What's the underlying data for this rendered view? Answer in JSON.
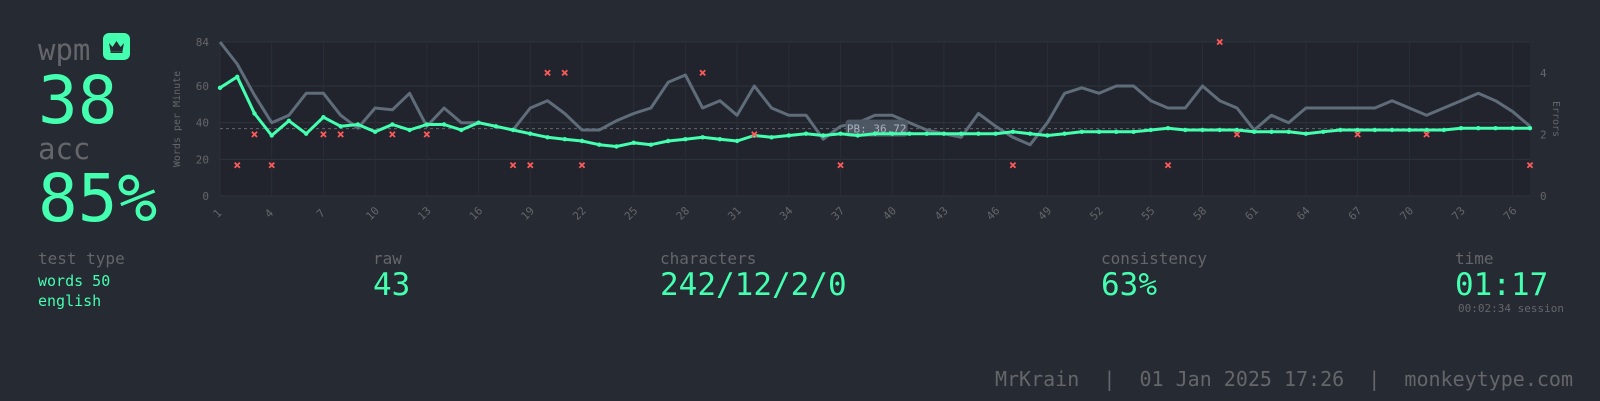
{
  "summary": {
    "wpm_label": "wpm",
    "wpm_value": "38",
    "acc_label": "acc",
    "acc_value": "85%"
  },
  "stats": {
    "test_type_label": "test type",
    "test_type_mode": "words 50",
    "test_type_language": "english",
    "raw_label": "raw",
    "raw_value": "43",
    "characters_label": "characters",
    "characters_value": "242/12/2/0",
    "consistency_label": "consistency",
    "consistency_value": "63%",
    "time_label": "time",
    "time_value": "01:17",
    "session_time": "00:02:34 session"
  },
  "footer": {
    "username": "MrKrain",
    "datetime": "01 Jan 2025 17:26",
    "site": "monkeytype.com",
    "separator": "|"
  },
  "icons": {
    "badge": "crown-icon"
  },
  "colors": {
    "accent": "#43ffaf",
    "sub": "#646669",
    "bg": "#262a33",
    "error": "#ff5a5a",
    "raw": "#5f6c7a"
  },
  "chart_data": {
    "type": "line",
    "ylabel": "Words per Minute",
    "y2label": "Errors",
    "ylim": [
      0,
      84
    ],
    "y2lim": [
      0,
      5
    ],
    "yticks": [
      "0",
      "20",
      "40",
      "60",
      "84"
    ],
    "y2ticks": [
      "0",
      "2",
      "4"
    ],
    "xlim": [
      1,
      77
    ],
    "xticks": [
      "1",
      "4",
      "7",
      "10",
      "13",
      "16",
      "19",
      "22",
      "25",
      "28",
      "31",
      "34",
      "37",
      "40",
      "43",
      "46",
      "49",
      "52",
      "55",
      "58",
      "61",
      "64",
      "67",
      "70",
      "73",
      "76"
    ],
    "pb_label": "PB: 36.72",
    "pb_value": 36.72,
    "x": [
      1,
      2,
      3,
      4,
      5,
      6,
      7,
      8,
      9,
      10,
      11,
      12,
      13,
      14,
      15,
      16,
      17,
      18,
      19,
      20,
      21,
      22,
      23,
      24,
      25,
      26,
      27,
      28,
      29,
      30,
      31,
      32,
      33,
      34,
      35,
      36,
      37,
      38,
      39,
      40,
      41,
      42,
      43,
      44,
      45,
      46,
      47,
      48,
      49,
      50,
      51,
      52,
      53,
      54,
      55,
      56,
      57,
      58,
      59,
      60,
      61,
      62,
      63,
      64,
      65,
      66,
      67,
      68,
      69,
      70,
      71,
      72,
      73,
      74,
      75,
      76,
      77
    ],
    "series": [
      {
        "name": "wpm",
        "values": [
          59,
          65,
          45,
          33,
          41,
          34,
          43,
          38,
          39,
          35,
          39,
          36,
          39,
          39,
          36,
          40,
          38,
          36,
          34,
          32,
          31,
          30,
          28,
          27,
          29,
          28,
          30,
          31,
          32,
          31,
          30,
          33,
          32,
          33,
          34,
          33,
          34,
          33,
          34,
          34,
          34,
          34,
          34,
          34,
          34,
          34,
          35,
          34,
          33,
          34,
          35,
          35,
          35,
          35,
          36,
          37,
          36,
          36,
          36,
          36,
          35,
          35,
          35,
          34,
          35,
          36,
          36,
          36,
          36,
          36,
          36,
          36,
          37,
          37,
          37,
          37,
          37
        ]
      },
      {
        "name": "raw",
        "values": [
          84,
          72,
          55,
          40,
          44,
          56,
          56,
          44,
          37,
          48,
          47,
          56,
          38,
          48,
          40,
          40,
          38,
          36,
          48,
          52,
          45,
          36,
          36,
          41,
          45,
          48,
          62,
          66,
          48,
          52,
          44,
          60,
          48,
          44,
          44,
          31,
          38,
          40,
          44,
          44,
          40,
          36,
          34,
          32,
          45,
          38,
          32,
          28,
          40,
          56,
          59,
          56,
          60,
          60,
          52,
          48,
          48,
          60,
          52,
          48,
          36,
          44,
          40,
          48,
          48,
          48,
          48,
          48,
          52,
          48,
          44,
          48,
          52,
          56,
          52,
          46,
          38
        ]
      },
      {
        "name": "errors",
        "points": [
          [
            2,
            1
          ],
          [
            3,
            2
          ],
          [
            4,
            1
          ],
          [
            7,
            2
          ],
          [
            8,
            2
          ],
          [
            11,
            2
          ],
          [
            13,
            2
          ],
          [
            18,
            1
          ],
          [
            19,
            1
          ],
          [
            20,
            4
          ],
          [
            21,
            4
          ],
          [
            22,
            1
          ],
          [
            29,
            4
          ],
          [
            32,
            2
          ],
          [
            37,
            1
          ],
          [
            47,
            1
          ],
          [
            56,
            1
          ],
          [
            59,
            5
          ],
          [
            60,
            2
          ],
          [
            67,
            2
          ],
          [
            71,
            2
          ],
          [
            77,
            1
          ]
        ]
      }
    ]
  }
}
